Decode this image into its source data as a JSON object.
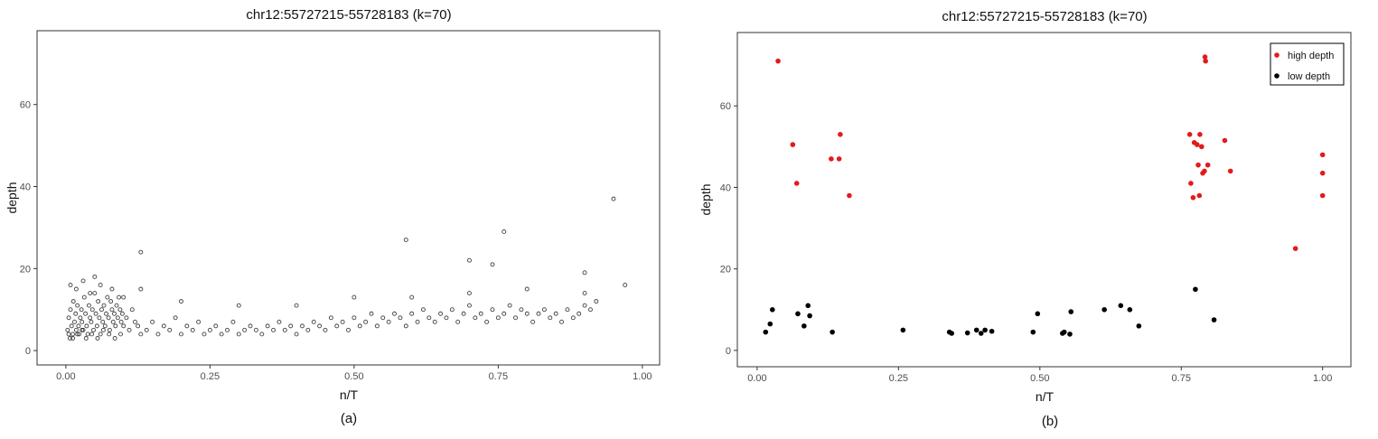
{
  "chart_data": [
    {
      "type": "scatter",
      "title": "chr12:55727215-55728183 (k=70)",
      "xlabel": "n/T",
      "ylabel": "depth",
      "caption": "(a)",
      "xlim": [
        -0.05,
        1.03
      ],
      "ylim": [
        -3.5,
        78
      ],
      "xticks": [
        0.0,
        0.25,
        0.5,
        0.75,
        1.0
      ],
      "xtick_labels": [
        "0.00",
        "0.25",
        "0.50",
        "0.75",
        "1.00"
      ],
      "yticks": [
        0,
        20,
        40,
        60
      ],
      "ytick_labels": [
        "0",
        "20",
        "40",
        "60"
      ],
      "grid": false,
      "marker": "hollow-circle",
      "series": [
        {
          "color": "#000000",
          "x": [
            0.003,
            0.005,
            0.007,
            0.008,
            0.01,
            0.012,
            0.013,
            0.015,
            0.017,
            0.018,
            0.02,
            0.022,
            0.023,
            0.025,
            0.027,
            0.028,
            0.03,
            0.032,
            0.034,
            0.036,
            0.038,
            0.04,
            0.042,
            0.044,
            0.046,
            0.048,
            0.05,
            0.052,
            0.054,
            0.056,
            0.058,
            0.06,
            0.062,
            0.064,
            0.066,
            0.068,
            0.07,
            0.072,
            0.074,
            0.076,
            0.078,
            0.08,
            0.082,
            0.084,
            0.086,
            0.088,
            0.09,
            0.092,
            0.094,
            0.096,
            0.098,
            0.1,
            0.105,
            0.11,
            0.115,
            0.12,
            0.125,
            0.13,
            0.14,
            0.15,
            0.16,
            0.17,
            0.18,
            0.19,
            0.2,
            0.21,
            0.22,
            0.23,
            0.24,
            0.25,
            0.26,
            0.27,
            0.28,
            0.29,
            0.3,
            0.31,
            0.32,
            0.33,
            0.34,
            0.35,
            0.36,
            0.37,
            0.38,
            0.39,
            0.4,
            0.41,
            0.42,
            0.43,
            0.44,
            0.45,
            0.46,
            0.47,
            0.48,
            0.49,
            0.5,
            0.51,
            0.52,
            0.53,
            0.54,
            0.55,
            0.56,
            0.57,
            0.58,
            0.59,
            0.6,
            0.61,
            0.62,
            0.63,
            0.64,
            0.65,
            0.66,
            0.67,
            0.68,
            0.69,
            0.7,
            0.71,
            0.72,
            0.73,
            0.74,
            0.75,
            0.76,
            0.77,
            0.78,
            0.79,
            0.8,
            0.81,
            0.82,
            0.83,
            0.84,
            0.85,
            0.86,
            0.87,
            0.88,
            0.89,
            0.9,
            0.91,
            0.92,
            0.005,
            0.012,
            0.02,
            0.028,
            0.035,
            0.045,
            0.055,
            0.065,
            0.075,
            0.085,
            0.095,
            0.008,
            0.018,
            0.03,
            0.042,
            0.06,
            0.08,
            0.1,
            0.13,
            0.2,
            0.3,
            0.4,
            0.5,
            0.6,
            0.7,
            0.8,
            0.9,
            0.13,
            0.05,
            0.59,
            0.76,
            0.7,
            0.74,
            0.95,
            0.97,
            0.9
          ],
          "y": [
            5,
            8,
            3,
            10,
            6,
            4,
            12,
            7,
            9,
            5,
            11,
            6,
            4,
            8,
            10,
            7,
            5,
            13,
            9,
            6,
            4,
            11,
            8,
            7,
            10,
            5,
            14,
            9,
            6,
            12,
            8,
            4,
            10,
            7,
            11,
            6,
            9,
            13,
            8,
            5,
            12,
            10,
            7,
            9,
            6,
            11,
            8,
            13,
            10,
            7,
            9,
            6,
            8,
            5,
            10,
            7,
            6,
            4,
            5,
            7,
            4,
            6,
            5,
            8,
            4,
            6,
            5,
            7,
            4,
            5,
            6,
            4,
            5,
            7,
            4,
            5,
            6,
            5,
            4,
            6,
            5,
            7,
            5,
            6,
            4,
            6,
            5,
            7,
            6,
            5,
            8,
            6,
            7,
            5,
            8,
            6,
            7,
            9,
            6,
            8,
            7,
            9,
            8,
            6,
            9,
            7,
            10,
            8,
            7,
            9,
            8,
            10,
            7,
            9,
            11,
            8,
            9,
            7,
            10,
            8,
            9,
            11,
            8,
            10,
            9,
            7,
            9,
            10,
            8,
            9,
            7,
            10,
            8,
            9,
            11,
            10,
            12,
            4,
            3,
            4,
            5,
            3,
            4,
            3,
            5,
            4,
            3,
            4,
            16,
            15,
            17,
            14,
            16,
            15,
            13,
            15,
            12,
            11,
            11,
            13,
            13,
            14,
            15,
            14,
            24,
            18,
            27,
            29,
            22,
            21,
            37,
            16,
            19
          ]
        }
      ]
    },
    {
      "type": "scatter",
      "title": "chr12:55727215-55728183 (k=70)",
      "xlabel": "n/T",
      "ylabel": "depth",
      "caption": "(b)",
      "xlim": [
        -0.035,
        1.05
      ],
      "ylim": [
        -4,
        78
      ],
      "xticks": [
        0.0,
        0.25,
        0.5,
        0.75,
        1.0
      ],
      "xtick_labels": [
        "0.00",
        "0.25",
        "0.50",
        "0.75",
        "1.00"
      ],
      "yticks": [
        0,
        20,
        40,
        60
      ],
      "ytick_labels": [
        "0",
        "20",
        "40",
        "60"
      ],
      "grid": false,
      "legend_position": "top-right",
      "marker": "filled-circle",
      "series": [
        {
          "name": "high depth",
          "color": "#e31a1c",
          "x": [
            0.037,
            0.063,
            0.07,
            0.131,
            0.145,
            0.147,
            0.163,
            0.765,
            0.767,
            0.771,
            0.773,
            0.778,
            0.78,
            0.782,
            0.783,
            0.786,
            0.788,
            0.791,
            0.793,
            0.797,
            0.827,
            0.837,
            0.952,
            1.0,
            1.0,
            1.0,
            0.792
          ],
          "y": [
            71,
            50.5,
            41,
            47,
            47,
            53,
            38,
            53,
            41,
            37.5,
            51,
            50.5,
            45.5,
            38,
            53,
            50,
            43.5,
            44,
            71,
            45.5,
            51.5,
            44,
            25,
            48,
            43.5,
            38,
            72
          ]
        },
        {
          "name": "low depth",
          "color": "#000000",
          "x": [
            0.015,
            0.023,
            0.027,
            0.072,
            0.083,
            0.09,
            0.093,
            0.133,
            0.258,
            0.34,
            0.344,
            0.372,
            0.388,
            0.396,
            0.403,
            0.415,
            0.488,
            0.496,
            0.54,
            0.543,
            0.553,
            0.555,
            0.614,
            0.643,
            0.659,
            0.675,
            0.775,
            0.808
          ],
          "y": [
            4.5,
            6.5,
            10,
            9,
            6,
            11,
            8.5,
            4.5,
            5,
            4.5,
            4.2,
            4.3,
            5,
            4.2,
            5,
            4.7,
            4.5,
            9,
            4.2,
            4.5,
            4,
            9.5,
            10,
            11,
            10,
            6,
            15,
            7.5
          ]
        }
      ]
    }
  ]
}
